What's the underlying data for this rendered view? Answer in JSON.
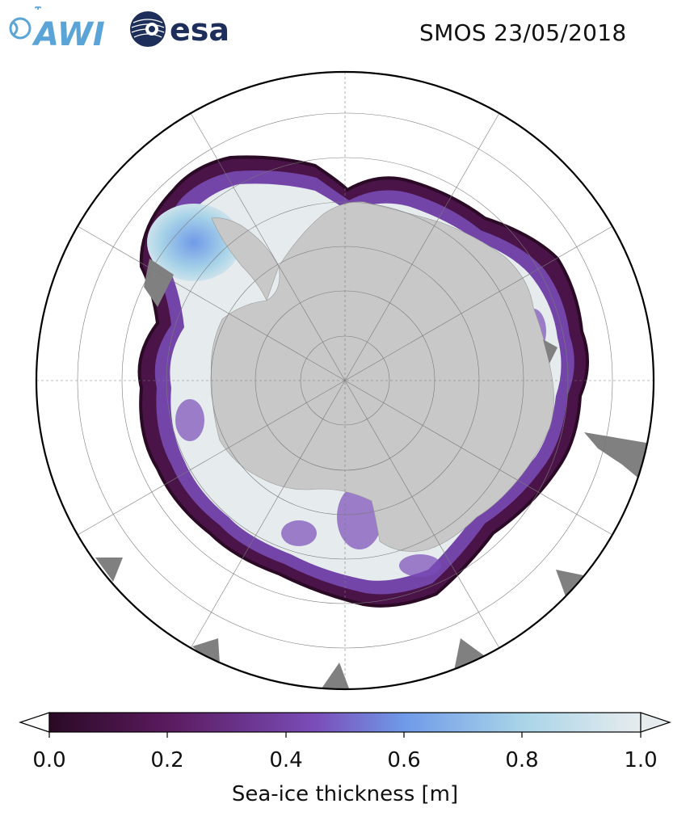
{
  "header": {
    "logo_awi_text": "AWI",
    "logo_esa_text": "esa",
    "title": "SMOS 23/05/2018"
  },
  "colorbar": {
    "label": "Sea-ice thickness [m]",
    "ticks": [
      "0.0",
      "0.2",
      "0.4",
      "0.6",
      "0.8",
      "1.0"
    ],
    "min": 0.0,
    "max": 1.0,
    "colors": [
      "#2a0a25",
      "#5a1a5e",
      "#7a4db8",
      "#6f9ae8",
      "#a9d4e8",
      "#e6ecee"
    ]
  },
  "map": {
    "projection": "south-polar-stereographic",
    "land_color": "#c8c8c8",
    "no_data_color": "#808080",
    "ocean_color": "#ffffff"
  }
}
